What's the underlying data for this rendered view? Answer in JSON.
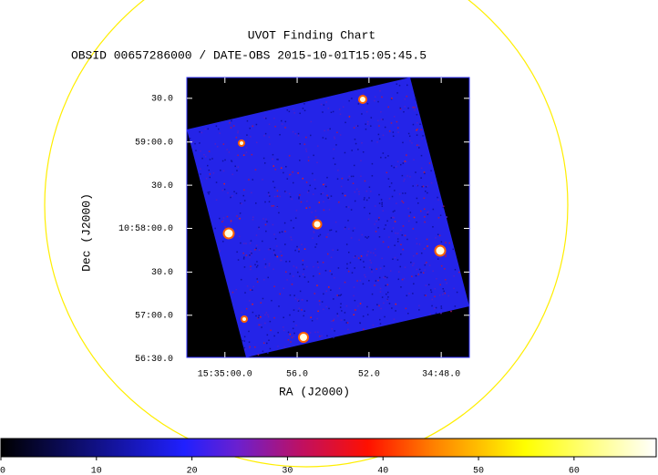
{
  "chart_data": {
    "type": "image",
    "title": "UVOT Finding Chart",
    "subtitle": "OBSID 00657286000 / DATE-OBS 2015-10-01T15:05:45.5",
    "x_label": "RA (J2000)",
    "y_label": "Dec (J2000)",
    "xlim": [
      233.7588,
      233.6935
    ],
    "xticks": [
      {
        "value": 233.75,
        "label": "15:35:00.0"
      },
      {
        "value": 233.7333,
        "label": "56.0"
      },
      {
        "value": 233.7167,
        "label": "52.0"
      },
      {
        "value": 233.7,
        "label": "34:48.0"
      }
    ],
    "ylim": [
      10.9419,
      10.9957
    ],
    "yticks": [
      {
        "value": 10.9417,
        "label": "56:30.0"
      },
      {
        "value": 10.95,
        "label": "57:00.0"
      },
      {
        "value": 10.9583,
        "label": "30.0"
      },
      {
        "value": 10.9667,
        "label": "10:58:00.0"
      },
      {
        "value": 10.975,
        "label": "30.0"
      },
      {
        "value": 10.9833,
        "label": "59:00.0"
      },
      {
        "value": 10.9917,
        "label": "30.0"
      }
    ],
    "colorbar": {
      "lim": [
        0,
        68.6
      ],
      "ticks": [
        0,
        10,
        20,
        30,
        40,
        50,
        60
      ]
    }
  }
}
